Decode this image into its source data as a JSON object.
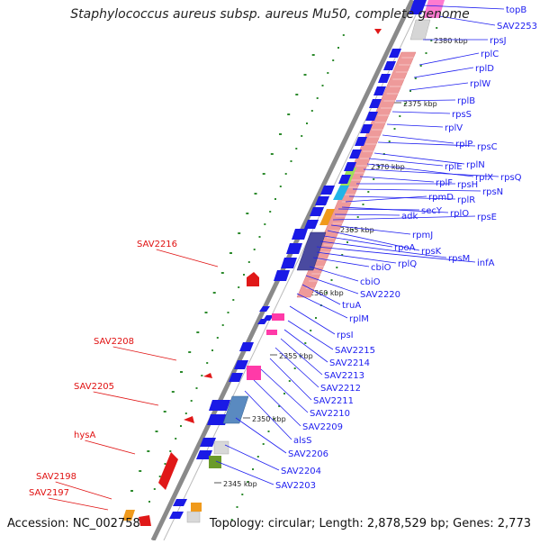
{
  "title": "Staphylococcus aureus subsp. aureus Mu50, complete genome",
  "footer": {
    "accession": "Accession: NC_002758",
    "topology": "Topology: circular; Length: 2,878,529 bp; Genes: 2,773"
  },
  "colors": {
    "forward_label": "#1d1df0",
    "reverse_label": "#e01010",
    "backbone": "#8a8a8a",
    "orf_dots": "#2e8b2e",
    "ribosomal": "#ee9a9a",
    "cds_forward": "#1a1ae6",
    "cds_reverse": "#e01818"
  },
  "ruler_ticks": [
    "2380 kbp",
    "2375 kbp",
    "2370 kbp",
    "2365 kbp",
    "2360 kbp",
    "2355 kbp",
    "2350 kbp",
    "2345 kbp"
  ],
  "right_labels": [
    "topB",
    "SAV2253",
    "rpsJ",
    "rplC",
    "rplD",
    "rplW",
    "rplB",
    "rpsS",
    "rplV",
    "rplP",
    "rpsC",
    "rplN",
    "rplE",
    "rplX",
    "rpsQ",
    "rplF",
    "rpsH",
    "rpsN",
    "rplR",
    "rpmD",
    "rplO",
    "secY",
    "adk",
    "rpsE",
    "rpmJ",
    "rpsK",
    "rpoA",
    "rpsM",
    "infA",
    "rplQ",
    "cbiO",
    "cbiO",
    "SAV2220",
    "truA",
    "rplM",
    "rpsI",
    "SAV2215",
    "SAV2214",
    "SAV2213",
    "SAV2212",
    "SAV2211",
    "SAV2210",
    "SAV2209",
    "alsS",
    "SAV2206",
    "SAV2204",
    "SAV2203"
  ],
  "left_labels": [
    "SAV2216",
    "SAV2208",
    "SAV2205",
    "hysA",
    "SAV2198",
    "SAV2197"
  ]
}
